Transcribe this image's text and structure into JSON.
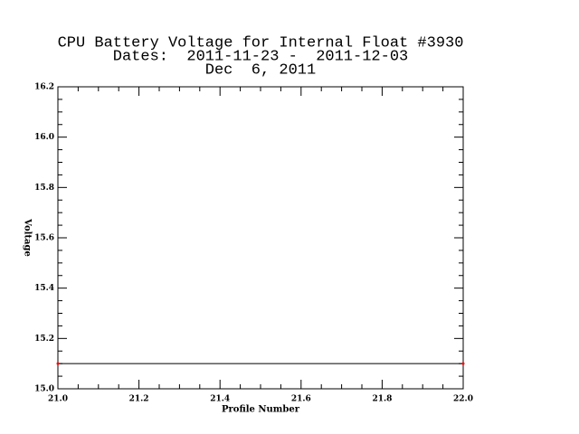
{
  "chart_data": {
    "type": "line",
    "title": "CPU Battery Voltage for Internal Float #3930",
    "subtitle": "Dates:  2011-11-23 -  2011-12-03",
    "date": "Dec  6, 2011",
    "x_label": "Profile Number",
    "y_label": "Voltage",
    "x": [
      21,
      22
    ],
    "series": [
      {
        "color": "#000000",
        "marker_color": "#ff0000",
        "values": [
          15.1,
          15.1
        ]
      }
    ],
    "xlim": [
      21,
      22
    ],
    "xticks": [
      {
        "value": 21,
        "label": "21.0"
      },
      21.2,
      21.4,
      21.6,
      21.8,
      {
        "value": 22,
        "label": "22.0"
      }
    ],
    "ylim": [
      15,
      16.2
    ],
    "yticks": [
      {
        "value": 15,
        "label": "15.0"
      },
      15.2,
      15.4,
      15.6,
      15.8,
      {
        "value": 16,
        "label": "16.0"
      },
      16.2
    ],
    "grid": false
  }
}
